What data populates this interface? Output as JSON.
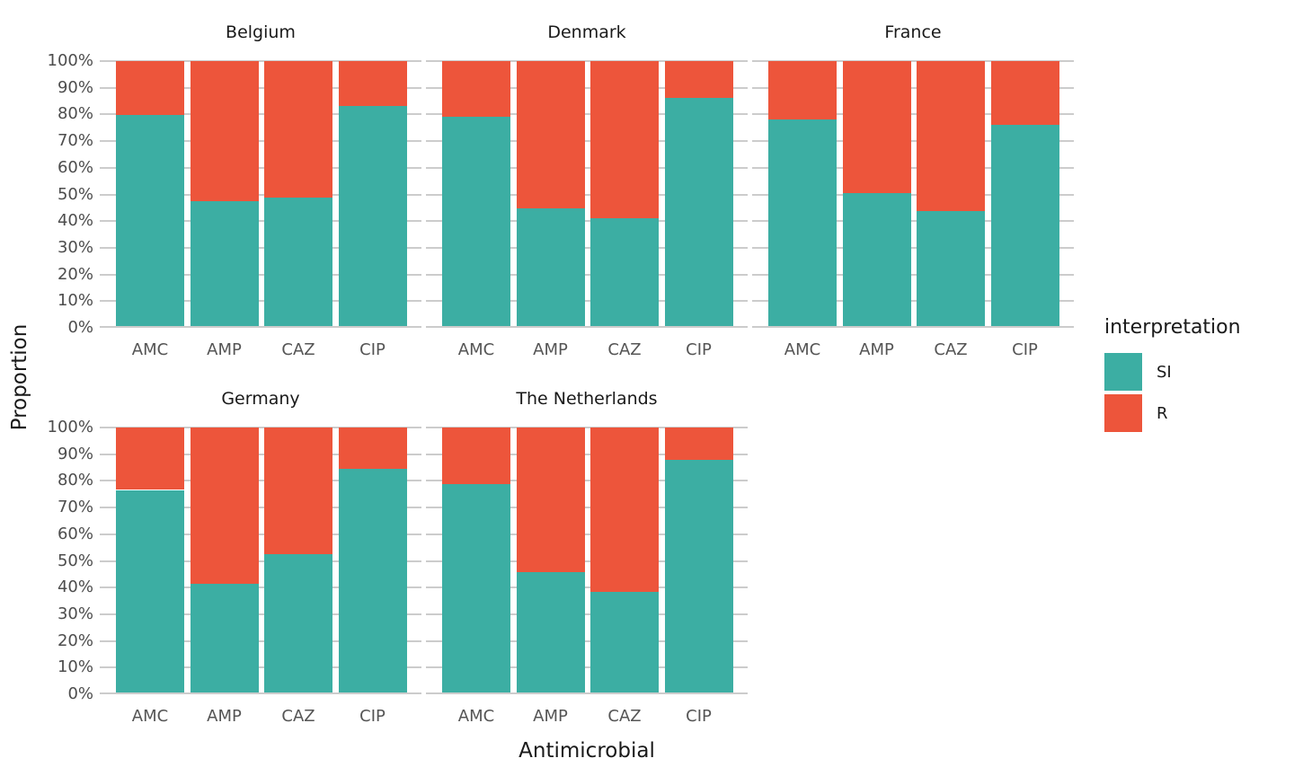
{
  "chart_data": {
    "type": "bar",
    "stacked": true,
    "unit": "percent",
    "title": "",
    "xlabel": "Antimicrobial",
    "ylabel": "Proportion",
    "categories": [
      "AMC",
      "AMP",
      "CAZ",
      "CIP"
    ],
    "y_ticks": [
      "100%",
      "90%",
      "80%",
      "70%",
      "60%",
      "50%",
      "40%",
      "30%",
      "20%",
      "10%",
      "0%"
    ],
    "ylim": [
      0,
      100
    ],
    "grid": true,
    "legend": {
      "title": "interpretation",
      "position": "right",
      "items": [
        {
          "label": "SI",
          "color": "#3CAEA3"
        },
        {
          "label": "R",
          "color": "#ED553B"
        }
      ]
    },
    "colors": {
      "SI": "#3CAEA3",
      "R": "#ED553B",
      "gridline": "#cccccc",
      "tick_label": "#4d4d4d"
    },
    "facets": [
      {
        "title": "Belgium",
        "series": [
          {
            "name": "SI",
            "values": [
              79.9,
              47.4,
              48.9,
              83.3
            ]
          },
          {
            "name": "R",
            "values": [
              20.1,
              52.6,
              51.1,
              16.7
            ]
          }
        ]
      },
      {
        "title": "Denmark",
        "series": [
          {
            "name": "SI",
            "values": [
              79.2,
              44.7,
              41.0,
              86.1
            ]
          },
          {
            "name": "R",
            "values": [
              20.8,
              55.3,
              59.0,
              13.9
            ]
          }
        ]
      },
      {
        "title": "France",
        "series": [
          {
            "name": "SI",
            "values": [
              78.0,
              50.6,
              43.7,
              76.1
            ]
          },
          {
            "name": "R",
            "values": [
              22.0,
              49.4,
              56.3,
              23.9
            ]
          }
        ]
      },
      {
        "title": "Germany",
        "series": [
          {
            "name": "SI",
            "values": [
              76.6,
              41.5,
              52.4,
              84.4
            ]
          },
          {
            "name": "R",
            "values": [
              23.4,
              58.5,
              47.6,
              15.6
            ]
          }
        ]
      },
      {
        "title": "The Netherlands",
        "series": [
          {
            "name": "SI",
            "values": [
              78.7,
              45.8,
              38.4,
              87.8
            ]
          },
          {
            "name": "R",
            "values": [
              21.3,
              54.2,
              61.6,
              12.2
            ]
          }
        ]
      }
    ]
  }
}
